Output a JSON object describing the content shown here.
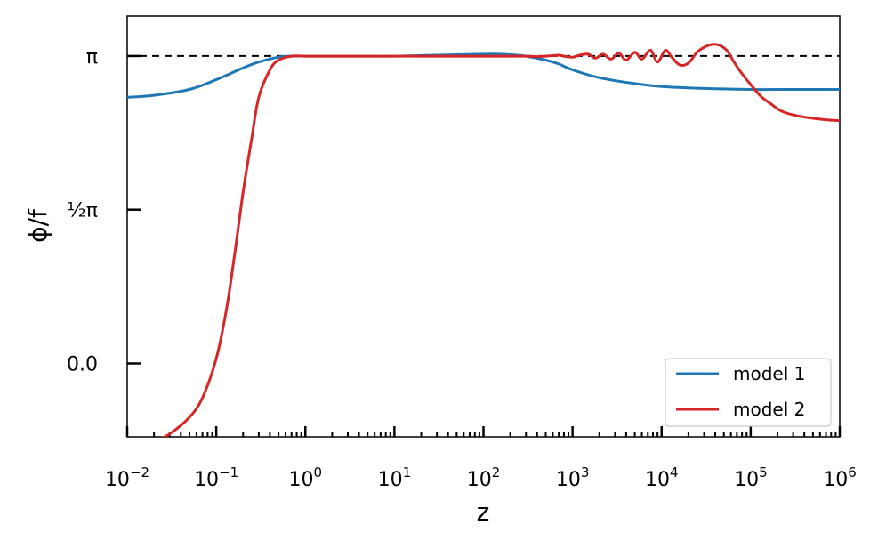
{
  "chart_data": {
    "type": "line",
    "title": "",
    "xlabel": "z",
    "ylabel": "ϕ/f",
    "xscale": "log",
    "xlim": [
      0.01,
      1000000
    ],
    "ylim": [
      -0.75,
      3.55
    ],
    "x_ticks": [
      {
        "value": 0.01,
        "base": "10",
        "exp": "−2"
      },
      {
        "value": 0.1,
        "base": "10",
        "exp": "−1"
      },
      {
        "value": 1,
        "base": "10",
        "exp": "0"
      },
      {
        "value": 10,
        "base": "10",
        "exp": "1"
      },
      {
        "value": 100,
        "base": "10",
        "exp": "2"
      },
      {
        "value": 1000,
        "base": "10",
        "exp": "3"
      },
      {
        "value": 10000,
        "base": "10",
        "exp": "4"
      },
      {
        "value": 100000,
        "base": "10",
        "exp": "5"
      },
      {
        "value": 1000000,
        "base": "10",
        "exp": "6"
      }
    ],
    "y_ticks": [
      {
        "value": 0.0,
        "label": "0.0"
      },
      {
        "value": 1.5708,
        "label": "½π"
      },
      {
        "value": 3.14159,
        "label": "π"
      }
    ],
    "reference_line": {
      "y": 3.14159,
      "style": "dashed",
      "color": "#000000"
    },
    "legend": {
      "position": "bottom-right"
    },
    "grid": false,
    "series": [
      {
        "name": "model 1",
        "color": "#1f77b4",
        "x": [
          0.01,
          0.02,
          0.05,
          0.1,
          0.2,
          0.3,
          0.5,
          0.7,
          1,
          2,
          5,
          10,
          30,
          100,
          150,
          200,
          300,
          500,
          700,
          1000,
          2000,
          5000,
          10000,
          30000,
          100000,
          300000,
          1000000
        ],
        "y": [
          2.72,
          2.74,
          2.8,
          2.9,
          3.02,
          3.08,
          3.13,
          3.14,
          3.14,
          3.14,
          3.14,
          3.14,
          3.15,
          3.16,
          3.16,
          3.155,
          3.14,
          3.1,
          3.06,
          3.0,
          2.92,
          2.86,
          2.83,
          2.81,
          2.8,
          2.8,
          2.8
        ]
      },
      {
        "name": "model 2",
        "color": "#d62728",
        "x": [
          0.01,
          0.015,
          0.02,
          0.03,
          0.05,
          0.07,
          0.1,
          0.13,
          0.16,
          0.2,
          0.25,
          0.3,
          0.4,
          0.5,
          0.7,
          1,
          2,
          5,
          10,
          100,
          200,
          300,
          400,
          500,
          600,
          700,
          800,
          1000,
          1200,
          1500,
          1800,
          2200,
          2700,
          3300,
          4000,
          5000,
          6000,
          7500,
          9000,
          11000,
          13000,
          16000,
          20000,
          25000,
          30000,
          37000,
          45000,
          55000,
          65000,
          80000,
          100000,
          130000,
          170000,
          220000,
          300000,
          450000,
          700000,
          1000000
        ],
        "y": [
          -0.9,
          -0.85,
          -0.8,
          -0.72,
          -0.55,
          -0.35,
          0.05,
          0.55,
          1.1,
          1.75,
          2.3,
          2.72,
          3.0,
          3.1,
          3.14,
          3.14,
          3.14,
          3.14,
          3.14,
          3.14,
          3.14,
          3.14,
          3.135,
          3.14,
          3.145,
          3.15,
          3.14,
          3.13,
          3.15,
          3.16,
          3.12,
          3.16,
          3.11,
          3.17,
          3.1,
          3.18,
          3.11,
          3.2,
          3.08,
          3.2,
          3.13,
          3.05,
          3.07,
          3.18,
          3.23,
          3.26,
          3.25,
          3.19,
          3.08,
          2.96,
          2.85,
          2.73,
          2.65,
          2.58,
          2.54,
          2.51,
          2.49,
          2.48
        ]
      }
    ]
  }
}
